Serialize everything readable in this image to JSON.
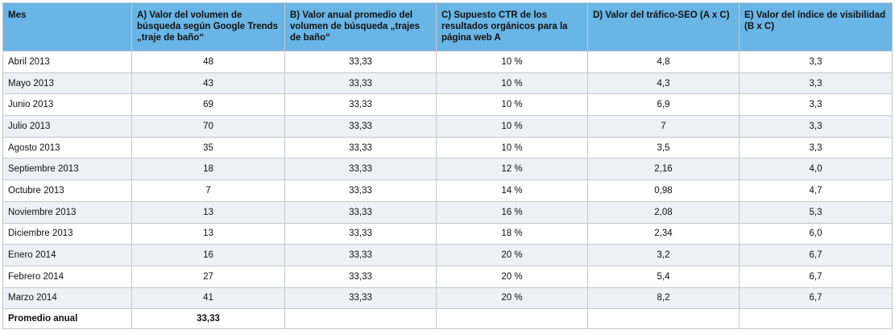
{
  "table": {
    "header": [
      "Mes",
      "A) Valor del volumen de búsqueda según Google Trends „traje de baño“",
      "B) Valor anual promedio del volumen de búsqueda „trajes de baño“",
      "C) Supuesto CTR de los resultados orgánicos para la página web A",
      "D) Valor del tráfico-SEO (A x C)",
      "E) Valor del índice de visibilidad (B x C)"
    ],
    "rows": [
      [
        "Abril 2013",
        "48",
        "33,33",
        "10 %",
        "4,8",
        "3,3"
      ],
      [
        "Mayo 2013",
        "43",
        "33,33",
        "10 %",
        "4,3",
        "3,3"
      ],
      [
        "Junio 2013",
        "69",
        "33,33",
        "10 %",
        "6,9",
        "3,3"
      ],
      [
        "Julio 2013",
        "70",
        "33,33",
        "10 %",
        "7",
        "3,3"
      ],
      [
        "Agosto 2013",
        "35",
        "33,33",
        "10 %",
        "3,5",
        "3,3"
      ],
      [
        "Septiembre 2013",
        "18",
        "33,33",
        "12 %",
        "2,16",
        "4,0"
      ],
      [
        "Octubre 2013",
        "7",
        "33,33",
        "14 %",
        "0,98",
        "4,7"
      ],
      [
        "Noviembre 2013",
        "13",
        "33,33",
        "16 %",
        "2,08",
        "5,3"
      ],
      [
        "Diciembre 2013",
        "13",
        "33,33",
        "18 %",
        "2,34",
        "6,0"
      ],
      [
        "Enero 2014",
        "16",
        "33,33",
        "20 %",
        "3,2",
        "6,7"
      ],
      [
        "Febrero 2014",
        "27",
        "33,33",
        "20 %",
        "5,4",
        "6,7"
      ],
      [
        "Marzo 2014",
        "41",
        "33,33",
        "20 %",
        "8,2",
        "6,7"
      ]
    ],
    "footer": [
      "Promedio anual",
      "33,33"
    ]
  }
}
